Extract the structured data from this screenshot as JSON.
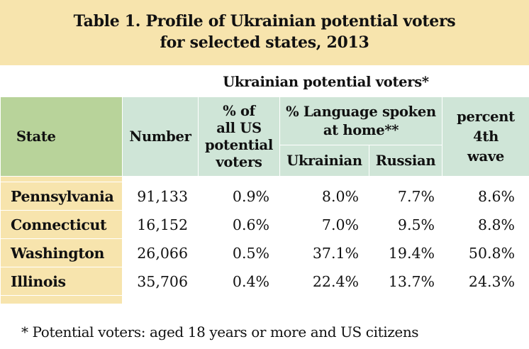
{
  "title": {
    "line1": "Table 1.  Profile of Ukrainian potential voters",
    "line2": "for selected states, 2013"
  },
  "table": {
    "super_header": "Ukrainian potential voters*",
    "headers": {
      "state": "State",
      "number": "Number",
      "pct_all_line1": "% of",
      "pct_all_line2": "all US",
      "pct_all_line3": "potential",
      "pct_all_line4": "voters",
      "language_line1": "% Language spoken",
      "language_line2": "at home**",
      "ukrainian": "Ukrainian",
      "russian": "Russian",
      "wave_line1": "percent",
      "wave_line2": "4th",
      "wave_line3": "wave"
    },
    "rows": [
      {
        "state": "Pennsylvania",
        "number": "91,133",
        "pct_all": "0.9%",
        "ukrainian": "8.0%",
        "russian": "7.7%",
        "wave": "8.6%"
      },
      {
        "state": "Connecticut",
        "number": "16,152",
        "pct_all": "0.6%",
        "ukrainian": "7.0%",
        "russian": "9.5%",
        "wave": "8.8%"
      },
      {
        "state": "Washington",
        "number": "26,066",
        "pct_all": "0.5%",
        "ukrainian": "37.1%",
        "russian": "19.4%",
        "wave": "50.8%"
      },
      {
        "state": "Illinois",
        "number": "35,706",
        "pct_all": "0.4%",
        "ukrainian": "22.4%",
        "russian": "13.7%",
        "wave": "24.3%"
      }
    ]
  },
  "footnote": "* Potential voters: aged 18 years or more and US citizens",
  "colors": {
    "title_bg": "#f7e4ad",
    "header_bg": "#cfe5d7",
    "state_header_bg": "#b8d39a",
    "state_col_bg": "#f7e4ad"
  }
}
